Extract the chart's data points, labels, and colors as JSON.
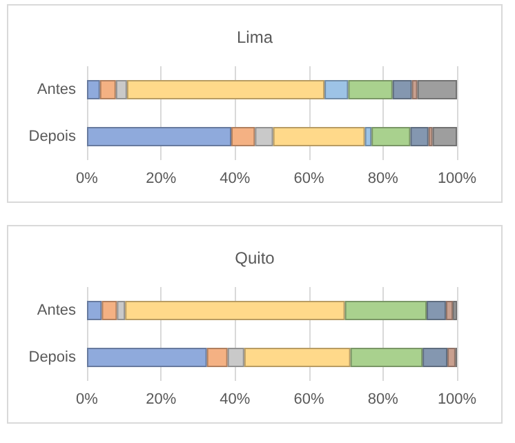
{
  "chart_data": [
    {
      "type": "bar",
      "title": "Lima",
      "orientation": "horizontal",
      "stacked": true,
      "categories": [
        "Antes",
        "Depois"
      ],
      "xlim": [
        0,
        100
      ],
      "xticks": [
        {
          "value": 0,
          "label": "0%"
        },
        {
          "value": 20,
          "label": "20%"
        },
        {
          "value": 40,
          "label": "40%"
        },
        {
          "value": 60,
          "label": "60%"
        },
        {
          "value": 80,
          "label": "80%"
        },
        {
          "value": 100,
          "label": "100%"
        }
      ],
      "grid": "x",
      "series": [
        {
          "color": "#8faadc",
          "values": [
            3.5,
            39.0
          ]
        },
        {
          "color": "#f4b183",
          "values": [
            4.3,
            6.4
          ]
        },
        {
          "color": "#c9c9c9",
          "values": [
            3.0,
            4.9
          ]
        },
        {
          "color": "#ffd98a",
          "values": [
            53.4,
            24.8
          ]
        },
        {
          "color": "#9dc3e6",
          "values": [
            6.4,
            1.8
          ]
        },
        {
          "color": "#a9d18e",
          "values": [
            12.0,
            10.5
          ]
        },
        {
          "color": "#8497b0",
          "values": [
            5.2,
            4.9
          ]
        },
        {
          "color": "#c9a08f",
          "values": [
            1.5,
            1.1
          ]
        },
        {
          "color": "#9e9e9e",
          "values": [
            10.7,
            6.6
          ]
        }
      ]
    },
    {
      "type": "bar",
      "title": "Quito",
      "orientation": "horizontal",
      "stacked": true,
      "categories": [
        "Antes",
        "Depois"
      ],
      "xlim": [
        0,
        100
      ],
      "xticks": [
        {
          "value": 0,
          "label": "0%"
        },
        {
          "value": 20,
          "label": "20%"
        },
        {
          "value": 40,
          "label": "40%"
        },
        {
          "value": 60,
          "label": "60%"
        },
        {
          "value": 80,
          "label": "80%"
        },
        {
          "value": 100,
          "label": "100%"
        }
      ],
      "grid": "x",
      "series": [
        {
          "color": "#8faadc",
          "values": [
            4.0,
            32.4
          ]
        },
        {
          "color": "#f4b183",
          "values": [
            4.1,
            5.6
          ]
        },
        {
          "color": "#c9c9c9",
          "values": [
            2.2,
            4.5
          ]
        },
        {
          "color": "#ffd98a",
          "values": [
            59.4,
            28.7
          ]
        },
        {
          "color": "#9dc3e6",
          "values": [
            null,
            null
          ]
        },
        {
          "color": "#a9d18e",
          "values": [
            22.1,
            19.5
          ]
        },
        {
          "color": "#8497b0",
          "values": [
            5.2,
            6.7
          ]
        },
        {
          "color": "#c9a08f",
          "values": [
            1.9,
            2.2
          ]
        },
        {
          "color": "#9e9e9e",
          "values": [
            1.1,
            0.4
          ]
        }
      ]
    }
  ]
}
